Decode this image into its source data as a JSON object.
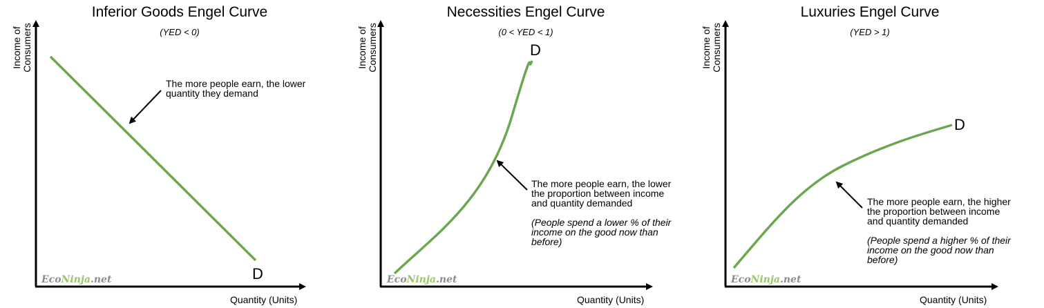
{
  "panels": [
    {
      "title": "Inferior Goods Engel Curve",
      "subtitle": "(YED < 0)",
      "ylabel_line1": "Income of",
      "ylabel_line2": "Consumers",
      "xlabel": "Quantity (Units)",
      "curve_label": "D",
      "note_line1": "The more people earn, the lower",
      "note_line2": "quantity they demand",
      "watermark_eco": "Eco",
      "watermark_ninja": "Ninja",
      "watermark_net": ".net"
    },
    {
      "title": "Necessities Engel Curve",
      "subtitle": "(0 < YED < 1)",
      "ylabel_line1": "Income of",
      "ylabel_line2": "Consumers",
      "xlabel": "Quantity (Units)",
      "curve_label": "D",
      "note_line1": "The more people earn, the lower",
      "note_line2": "the proportion between income",
      "note_line3": "and quantity demanded",
      "note_italic_line1": "(People spend a lower % of their",
      "note_italic_line2": "income on the good now than",
      "note_italic_line3": "before)",
      "watermark_eco": "Eco",
      "watermark_ninja": "Ninja",
      "watermark_net": ".net"
    },
    {
      "title": "Luxuries Engel Curve",
      "subtitle": "(YED > 1)",
      "ylabel_line1": "Income of",
      "ylabel_line2": "Consumers",
      "xlabel": "Quantity (Units)",
      "curve_label": "D",
      "note_line1": "The more people earn, the higher",
      "note_line2": "the proportion between income",
      "note_line3": "and quantity demanded",
      "note_italic_line1": "(People spend a higher % of their",
      "note_italic_line2": "income on the good now than",
      "note_italic_line3": "before)",
      "watermark_eco": "Eco",
      "watermark_ninja": "Ninja",
      "watermark_net": ".net"
    }
  ],
  "colors": {
    "curve": "#6aa84f",
    "axis": "#000000",
    "watermark_gray": "#8c8c8c",
    "watermark_green": "#9cc46a"
  }
}
